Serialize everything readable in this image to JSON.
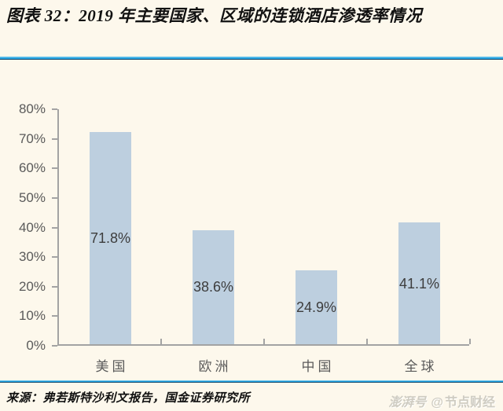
{
  "header": {
    "title": "图表 32：2019 年主要国家、区域的连锁酒店渗透率情况"
  },
  "chart_data": {
    "type": "bar",
    "title": "2019 年主要国家、区域的连锁酒店渗透率",
    "categories": [
      "美国",
      "欧洲",
      "中国",
      "全球"
    ],
    "values": [
      71.8,
      38.6,
      24.9,
      41.1
    ],
    "data_labels": [
      "71.8%",
      "38.6%",
      "24.9%",
      "41.1%"
    ],
    "xlabel": "",
    "ylabel": "",
    "ylim": [
      0,
      80
    ],
    "ytick_step": 10,
    "ytick_labels": [
      "0%",
      "10%",
      "20%",
      "30%",
      "40%",
      "50%",
      "60%",
      "70%",
      "80%"
    ],
    "grid": false,
    "legend": "none",
    "bar_color": "#BDCFDF"
  },
  "footer": {
    "source": "来源：弗若斯特沙利文报告，国金证券研究所",
    "watermark_platform": "澎湃号",
    "watermark_symbol": "@",
    "watermark_account": "节点财经"
  },
  "colors": {
    "background": "#FDF8EC",
    "bar": "#BDCFDF",
    "axis": "#A3A3A3",
    "label": "#5A5A5A",
    "data_label": "#3D3D3D",
    "accent_light": "#66C4EE",
    "accent_mid": "#1E9DDC",
    "accent_dark": "#1D4E6E",
    "watermark": "#CFCCC2"
  }
}
